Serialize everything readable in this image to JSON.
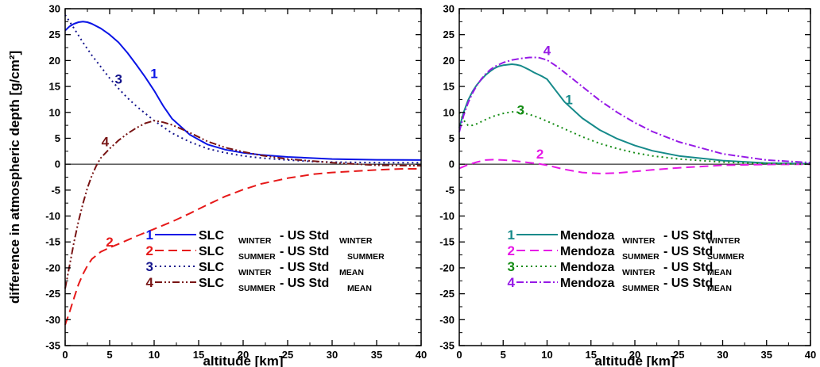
{
  "chart_data": [
    {
      "type": "line",
      "ylabel": "difference in atmospheric depth [g/cm²]",
      "xlabel": "altitude [km]",
      "xlim": [
        0,
        40
      ],
      "ylim": [
        -35,
        30
      ],
      "xticks": [
        "0",
        "5",
        "10",
        "15",
        "20",
        "25",
        "30",
        "35",
        "40"
      ],
      "yticks": [
        "30",
        "25",
        "20",
        "15",
        "10",
        "5",
        "0",
        "-5",
        "-10",
        "-15",
        "-20",
        "-25",
        "-30",
        "-35"
      ],
      "legend_position": "bottom-center",
      "series": [
        {
          "num": "1",
          "name": "SLC WINTER - US Std WINTER",
          "name_parts": [
            "SLC ",
            "WINTER",
            " - US Std ",
            "WINTER"
          ],
          "color": "#0a14e6",
          "dash": "solid",
          "x": [
            0,
            0.5,
            1,
            1.5,
            2,
            2.5,
            3,
            4,
            5,
            6,
            7,
            8,
            9,
            10,
            11,
            12,
            14,
            16,
            18,
            20,
            22,
            25,
            30,
            35,
            40
          ],
          "y": [
            25.8,
            26.6,
            27.1,
            27.4,
            27.5,
            27.4,
            27.1,
            26.2,
            25.0,
            23.5,
            21.5,
            19.2,
            16.8,
            14.2,
            11.3,
            8.8,
            5.7,
            3.8,
            2.8,
            2.2,
            1.8,
            1.4,
            1.0,
            0.85,
            0.8
          ],
          "label_at": [
            10,
            17.5
          ]
        },
        {
          "num": "2",
          "name": "SLC SUMMER - US Std SUMMER",
          "name_parts": [
            "SLC ",
            "SUMMER",
            " - US Std ",
            "SUMMER"
          ],
          "color": "#e61919",
          "dash": "dashed",
          "x": [
            0,
            0.5,
            1,
            1.5,
            2,
            2.5,
            3,
            4,
            5,
            6,
            8,
            10,
            12,
            14,
            16,
            18,
            20,
            22,
            25,
            28,
            30,
            32,
            35,
            38,
            40
          ],
          "y": [
            -31,
            -28.5,
            -25.8,
            -23.2,
            -21.2,
            -19.6,
            -18.3,
            -16.9,
            -16.1,
            -15.4,
            -13.9,
            -12.5,
            -11.1,
            -9.5,
            -7.8,
            -6.2,
            -4.9,
            -3.8,
            -2.7,
            -1.9,
            -1.6,
            -1.4,
            -1.1,
            -0.9,
            -0.9
          ],
          "label_at": [
            5,
            -15
          ]
        },
        {
          "num": "3",
          "name": "SLC WINTER - US Std MEAN",
          "name_parts": [
            "SLC ",
            "WINTER",
            " - US Std ",
            "MEAN"
          ],
          "color": "#14148c",
          "dash": "dotted",
          "x": [
            0,
            1,
            2,
            3,
            4,
            5,
            6,
            7,
            8,
            9,
            10,
            12,
            14,
            16,
            18,
            20,
            22,
            25,
            28,
            30,
            35,
            40
          ],
          "y": [
            28.8,
            26.2,
            23.5,
            21.0,
            18.8,
            16.6,
            14.6,
            12.8,
            11.2,
            9.8,
            8.4,
            6.0,
            4.3,
            3.0,
            2.2,
            1.6,
            1.2,
            0.8,
            0.5,
            0.4,
            0.3,
            0.3
          ],
          "label_at": [
            6,
            16.5
          ]
        },
        {
          "num": "4",
          "name": "SLC SUMMER - US Std MEAN",
          "name_parts": [
            "SLC ",
            "SUMMER",
            " - US Std ",
            "MEAN"
          ],
          "color": "#781414",
          "dash": "dashdotdot",
          "x": [
            0,
            0.5,
            1,
            1.5,
            2,
            2.5,
            3,
            3.5,
            4,
            5,
            6,
            7,
            8,
            9,
            10,
            11,
            12,
            14,
            16,
            18,
            20,
            22,
            25,
            30,
            35,
            40
          ],
          "y": [
            -24,
            -19.5,
            -15,
            -11,
            -7.6,
            -4.6,
            -2.2,
            -0.3,
            1.2,
            3.0,
            4.6,
            5.9,
            7.0,
            7.9,
            8.4,
            8.1,
            7.6,
            6.1,
            4.4,
            3.2,
            2.4,
            1.7,
            1.0,
            0.3,
            -0.2,
            -0.3
          ],
          "label_at": [
            4.5,
            4.4
          ]
        }
      ]
    },
    {
      "type": "line",
      "xlabel": "altitude [km]",
      "xlim": [
        0,
        40
      ],
      "ylim": [
        -35,
        30
      ],
      "xticks": [
        "0",
        "5",
        "10",
        "15",
        "20",
        "25",
        "30",
        "35",
        "40"
      ],
      "yticks": [
        "30",
        "25",
        "20",
        "15",
        "10",
        "5",
        "0",
        "-5",
        "-10",
        "-15",
        "-20",
        "-25",
        "-30",
        "-35"
      ],
      "legend_position": "bottom-center",
      "series": [
        {
          "num": "1",
          "name": "Mendoza WINTER - US Std WINTER",
          "name_parts": [
            "Mendoza ",
            "WINTER",
            " - US Std",
            "WINTER"
          ],
          "color": "#168a8a",
          "dash": "solid",
          "x": [
            0,
            0.5,
            1,
            1.5,
            2,
            2.5,
            3,
            3.5,
            4,
            4.5,
            5,
            5.5,
            6,
            6.5,
            7,
            7.5,
            8,
            8.5,
            9,
            9.5,
            10,
            11,
            12,
            14,
            16,
            18,
            20,
            22,
            25,
            30,
            35,
            40
          ],
          "y": [
            7.0,
            10.0,
            12.3,
            14.0,
            15.3,
            16.3,
            17.2,
            17.9,
            18.5,
            18.9,
            19.1,
            19.2,
            19.3,
            19.2,
            19.0,
            18.6,
            18.2,
            17.7,
            17.3,
            16.9,
            16.4,
            14.2,
            12.0,
            8.9,
            6.6,
            4.9,
            3.6,
            2.6,
            1.6,
            0.7,
            0.2,
            0.1
          ],
          "label_at": [
            12.5,
            12.5
          ]
        },
        {
          "num": "2",
          "name": "Mendoza SUMMER - US Std SUMMER",
          "name_parts": [
            "Mendoza ",
            "SUMMER",
            " - US Std",
            "SUMMER"
          ],
          "color": "#e619e6",
          "dash": "dashed",
          "x": [
            0,
            1,
            2,
            3,
            4,
            5,
            6,
            7,
            8,
            9,
            10,
            12,
            14,
            16,
            18,
            20,
            22,
            25,
            28,
            30,
            35,
            40
          ],
          "y": [
            -0.8,
            -0.1,
            0.4,
            0.8,
            0.9,
            0.8,
            0.7,
            0.5,
            0.3,
            0.1,
            -0.2,
            -1.0,
            -1.6,
            -1.8,
            -1.7,
            -1.4,
            -1.1,
            -0.7,
            -0.4,
            -0.2,
            -0.05,
            0
          ],
          "label_at": [
            9.2,
            2
          ]
        },
        {
          "num": "3",
          "name": "Mendoza WINTER - US Std MEAN",
          "name_parts": [
            "Mendoza ",
            "WINTER",
            " - US Std",
            "MEAN"
          ],
          "color": "#148c14",
          "dash": "dotted",
          "x": [
            0,
            0.5,
            1,
            1.5,
            2,
            3,
            4,
            5,
            6,
            7,
            8,
            9,
            10,
            12,
            14,
            16,
            18,
            20,
            22,
            25,
            30,
            35,
            40
          ],
          "y": [
            10,
            8.5,
            7.5,
            7.5,
            7.8,
            8.6,
            9.3,
            9.8,
            10.1,
            10.0,
            9.6,
            9.0,
            8.3,
            6.8,
            5.3,
            4.0,
            3.0,
            2.2,
            1.6,
            1.0,
            0.4,
            0.15,
            0
          ],
          "label_at": [
            7,
            10.5
          ]
        },
        {
          "num": "4",
          "name": "Mendoza SUMMER - US Std MEAN",
          "name_parts": [
            "Mendoza ",
            "SUMMER",
            " - US Std",
            "MEAN"
          ],
          "color": "#9619e6",
          "dash": "dashdot",
          "x": [
            0,
            0.5,
            1,
            1.5,
            2,
            2.5,
            3,
            3.5,
            4,
            5,
            6,
            7,
            8,
            9,
            10,
            11,
            12,
            14,
            16,
            18,
            20,
            22,
            25,
            30,
            35,
            40
          ],
          "y": [
            6.2,
            9.4,
            11.8,
            13.7,
            15.2,
            16.4,
            17.4,
            18.2,
            18.8,
            19.6,
            20.1,
            20.4,
            20.6,
            20.6,
            20.1,
            19.0,
            17.7,
            15.0,
            12.3,
            10.0,
            8.0,
            6.3,
            4.3,
            2.0,
            0.8,
            0.3
          ],
          "label_at": [
            10,
            22
          ]
        }
      ]
    }
  ]
}
